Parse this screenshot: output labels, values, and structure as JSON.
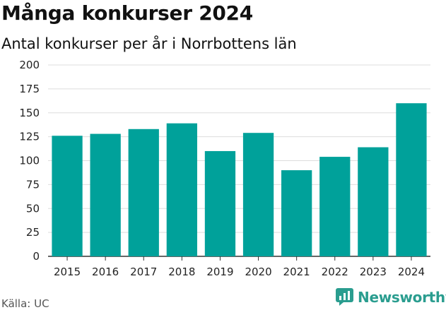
{
  "header": {
    "title": "Många konkurser 2024",
    "subtitle": "Antal konkurser per år i Norrbottens län"
  },
  "footer": {
    "source": "Källa: UC",
    "brand": "Newsworthy",
    "brand_icon": "newsworthy-logo-icon"
  },
  "colors": {
    "bar": "#00a19a",
    "grid": "#dddddd",
    "axis": "#333333",
    "brand": "#2a9d8f"
  },
  "chart_data": {
    "type": "bar",
    "title": "Många konkurser 2024",
    "subtitle": "Antal konkurser per år i Norrbottens län",
    "xlabel": "",
    "ylabel": "",
    "categories": [
      "2015",
      "2016",
      "2017",
      "2018",
      "2019",
      "2020",
      "2021",
      "2022",
      "2023",
      "2024"
    ],
    "values": [
      126,
      128,
      133,
      139,
      110,
      129,
      90,
      104,
      114,
      160
    ],
    "ylim": [
      0,
      200
    ],
    "yticks": [
      0,
      25,
      50,
      75,
      100,
      125,
      150,
      175,
      200
    ],
    "grid": true,
    "legend": "none"
  }
}
